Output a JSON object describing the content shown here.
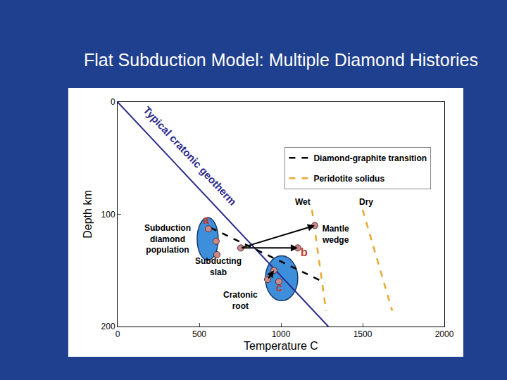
{
  "chart_data": {
    "type": "scatter",
    "title": "Flat Subduction Model: Multiple Diamond Histories",
    "x_label": "Temperature C",
    "y_label": "Depth km",
    "xlim": [
      0,
      2000
    ],
    "xticks": [
      0,
      500,
      1000,
      1500,
      2000
    ],
    "ylim": [
      200,
      0
    ],
    "yticks": [
      0,
      100,
      200
    ],
    "grid": false,
    "legend": "upper right",
    "series": [
      {
        "type": "line",
        "color": "#2b2b8c",
        "line_style": "solid",
        "x": [
          0,
          1290
        ],
        "y": [
          0,
          200
        ]
      },
      {
        "name": "Diamond-graphite transition",
        "type": "line",
        "color": "#000000",
        "line_style": "dash",
        "x": [
          570,
          1270
        ],
        "y": [
          112,
          161
        ]
      },
      {
        "name": "Peridotite solidus",
        "type": "line",
        "color": "#e8a830",
        "line_style": "dash",
        "x": [
          1190,
          1276
        ],
        "y": [
          96,
          186
        ]
      },
      {
        "name": "Peridotite solidus",
        "type": "line",
        "color": "#e8a830",
        "line_style": "dash",
        "x": [
          1500,
          1681
        ],
        "y": [
          96,
          186
        ]
      },
      {
        "type": "scatter",
        "color": "#c98a8a",
        "marker": "circle",
        "x": [
          556,
          603,
          608,
          754,
          1103,
          1207,
          957,
          918,
          987
        ],
        "y": [
          113,
          124,
          136,
          130,
          130,
          110,
          150,
          158,
          160
        ]
      }
    ],
    "regions": [
      {
        "color": "#3d8fdc",
        "x": [
          487,
          616
        ],
        "y": [
          103,
          141
        ]
      },
      {
        "color": "#3d8fdc",
        "x": [
          905,
          1103
        ],
        "y": [
          137,
          177
        ]
      }
    ],
    "arrows": [
      {
        "from": [
          754,
          130
        ],
        "to": [
          1207,
          110
        ]
      },
      {
        "from": [
          754,
          130
        ],
        "to": [
          1103,
          130
        ]
      },
      {
        "from": [
          918,
          158
        ],
        "to": [
          957,
          150
        ]
      }
    ],
    "annotations": [
      {
        "lines": [
          "Typical cratonic geotherm"
        ],
        "x": 444,
        "y": 48,
        "color": "#2b2b8c",
        "rotated": true
      },
      {
        "lines": [
          "a"
        ],
        "x": 539,
        "y": 105,
        "color": "#c0392b"
      },
      {
        "lines": [
          "b"
        ],
        "x": 1142,
        "y": 134,
        "color": "#c0392b"
      },
      {
        "lines": [
          "c"
        ],
        "x": 991,
        "y": 165,
        "color": "#c0392b"
      },
      {
        "lines": [
          "Subduction",
          "diamond",
          "population"
        ],
        "x": 306,
        "y": 122,
        "color": "#000000"
      },
      {
        "lines": [
          "Subducting",
          "slab"
        ],
        "x": 616,
        "y": 147,
        "color": "#000000"
      },
      {
        "lines": [
          "Cratonic",
          "root"
        ],
        "x": 754,
        "y": 177,
        "color": "#000000"
      },
      {
        "lines": [
          "Mantle",
          "wedge"
        ],
        "x": 1332,
        "y": 118,
        "color": "#000000"
      },
      {
        "lines": [
          "Wet"
        ],
        "x": 1134,
        "y": 89,
        "color": "#000000"
      },
      {
        "lines": [
          "Dry"
        ],
        "x": 1522,
        "y": 89,
        "color": "#000000"
      }
    ]
  }
}
